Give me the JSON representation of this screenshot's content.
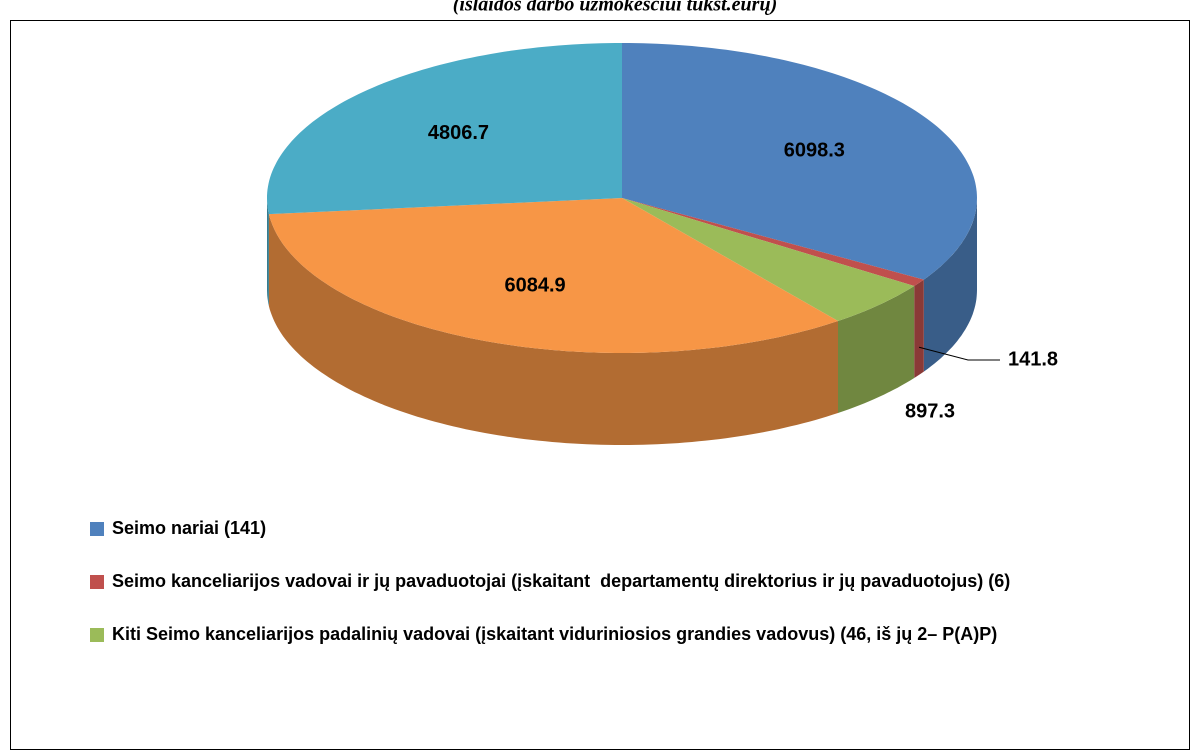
{
  "chart_data": {
    "type": "pie",
    "subtitle": "(išlaidos darbo užmokesčiui tūkst.eurų)",
    "categories": [
      "Seimo nariai (141)",
      "Seimo kanceliarijos vadovai ir jų pavaduotojai (įskaitant  departamentų direktorius ir jų pavaduotojus) (6)",
      "Kiti Seimo kanceliarijos padalinių vadovai (įskaitant viduriniosios grandies vadovus) (46, iš jų 2– P(A)P)",
      null,
      null
    ],
    "values": [
      6098.3,
      141.8,
      897.3,
      6084.9,
      4806.7
    ],
    "colors": [
      "#4f81bd",
      "#c0504d",
      "#9bbb59",
      "#f79646",
      "#4bacc6"
    ],
    "legend": "bottom"
  }
}
